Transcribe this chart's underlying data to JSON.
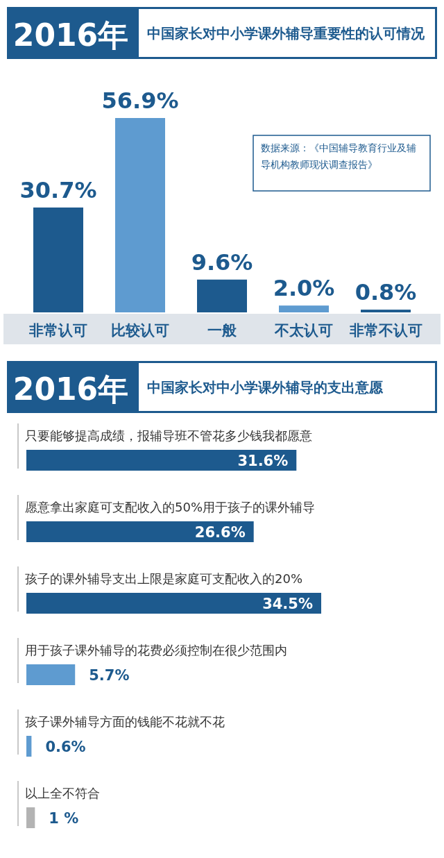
{
  "chart_data": [
    {
      "type": "bar",
      "title": "2016年",
      "subtitle": "中国家长对中小学课外辅导重要性的认可情况",
      "categories": [
        "非常认可",
        "比较认可",
        "一般",
        "不太认可",
        "非常不认可"
      ],
      "values": [
        30.7,
        56.9,
        9.6,
        2.0,
        0.8
      ],
      "colors": [
        "#1d5a8e",
        "#5e9bd0",
        "#1d5a8e",
        "#5e9bd0",
        "#1d5a8e"
      ],
      "value_labels": [
        "30.7%",
        "56.9%",
        "9.6%",
        "2.0%",
        "0.8%"
      ],
      "annotations": [
        "数据来源：《中国辅导教育行业及辅导机构教师现状调查报告》"
      ]
    },
    {
      "type": "bar",
      "orientation": "horizontal",
      "title": "2016年",
      "subtitle": "中国家长对中小学课外辅导的支出意愿",
      "categories": [
        "只要能够提高成绩，报辅导班不管花多少钱我都愿意",
        "愿意拿出家庭可支配收入的50%用于孩子的课外辅导",
        "孩子的课外辅导支出上限是家庭可支配收入的20%",
        "用于孩子课外辅导的花费必须控制在很少范围内",
        "孩子课外辅导方面的钱能不花就不花",
        "以上全不符合"
      ],
      "values": [
        31.6,
        26.6,
        34.5,
        5.7,
        0.6,
        1
      ],
      "colors": [
        "#1d5a8e",
        "#1d5a8e",
        "#1d5a8e",
        "#5e9bd0",
        "#5e9bd0",
        "#b3b3b3"
      ],
      "value_labels": [
        "31.6%",
        "26.6%",
        "34.5%",
        "5.7%",
        "0.6%",
        "1 %"
      ]
    }
  ]
}
